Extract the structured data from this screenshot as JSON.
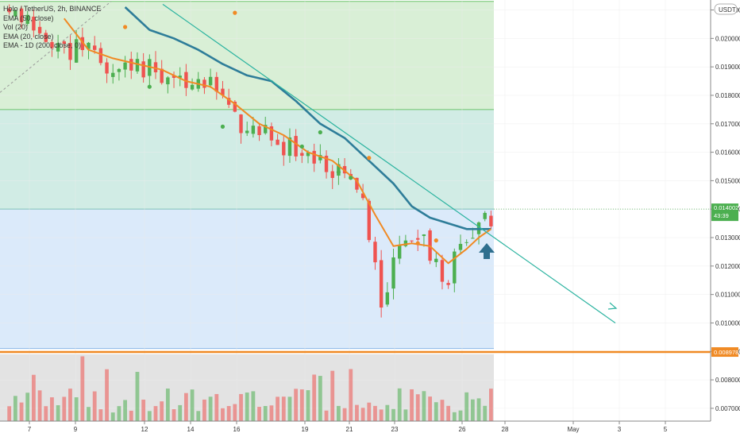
{
  "legend": {
    "symbol_line": "Holo / TetherUS, 2h, BINANCE",
    "ema50": "EMA (50, close)",
    "vol": "Vol (20)",
    "ema20": "EMA (20, close)",
    "ema_1d": "EMA - 1D (200, close, 0)"
  },
  "currency_badge": "USDT",
  "last_price": {
    "value": "0.014002",
    "countdown": "43:39"
  },
  "support_label": "0.008978",
  "colors": {
    "zone_top": "#d9efd6",
    "zone_mid": "#d1ece5",
    "zone_low": "#dbeafa",
    "zone_volume": "#e3e3e3",
    "candle_up": "#4caf50",
    "candle_down": "#ef5350",
    "ema50": "#2e7d99",
    "ema20": "#f08a24",
    "support": "#f08a24",
    "trendline": "#2bb3a0",
    "arrow": "#2e6f8e",
    "grid": "#ececec"
  },
  "icons": [
    "up-arrow-icon"
  ],
  "chart_data": {
    "type": "candlestick",
    "title": "Holo / TetherUS, 2h, BINANCE",
    "xlabel": "",
    "ylabel": "",
    "y_ticks": [
      "0.021000",
      "0.020000",
      "0.019000",
      "0.018000",
      "0.017000",
      "0.016000",
      "0.015000",
      "0.014000",
      "0.013000",
      "0.012000",
      "0.011000",
      "0.010000",
      "0.009000",
      "0.008000",
      "0.007000"
    ],
    "x_ticks": [
      "7",
      "9",
      "12",
      "14",
      "16",
      "19",
      "21",
      "23",
      "26",
      "28",
      "May",
      "3",
      "5"
    ],
    "ylim": [
      0.00655,
      0.02135
    ],
    "grid": true,
    "legend_position": "top-left",
    "zones": [
      {
        "name": "green",
        "from": 0.0175,
        "to": 0.0213
      },
      {
        "name": "teal",
        "from": 0.014,
        "to": 0.0175
      },
      {
        "name": "blue",
        "from": 0.0091,
        "to": 0.014
      },
      {
        "name": "gray",
        "from": 0.00655,
        "to": 0.0089
      }
    ],
    "support_level": 0.008978,
    "last_price": 0.014002,
    "trendline": [
      {
        "x": "11",
        "y": 0.0212
      },
      {
        "x": "May 2",
        "y": 0.01
      }
    ],
    "anchors": [
      {
        "x": 0,
        "y": 0.0212
      },
      {
        "x": 5,
        "y": 0.0202
      },
      {
        "x": 10,
        "y": 0.0195
      },
      {
        "x": 13,
        "y": 0.0199
      },
      {
        "x": 18,
        "y": 0.0188
      },
      {
        "x": 22,
        "y": 0.0192
      },
      {
        "x": 26,
        "y": 0.0186
      },
      {
        "x": 30,
        "y": 0.0187
      },
      {
        "x": 34,
        "y": 0.0182
      },
      {
        "x": 39,
        "y": 0.0171
      },
      {
        "x": 43,
        "y": 0.0168
      },
      {
        "x": 47,
        "y": 0.0161
      },
      {
        "x": 52,
        "y": 0.0158
      },
      {
        "x": 56,
        "y": 0.0152
      },
      {
        "x": 59,
        "y": 0.014
      },
      {
        "x": 62,
        "y": 0.0108
      },
      {
        "x": 65,
        "y": 0.0128
      },
      {
        "x": 68,
        "y": 0.0129
      },
      {
        "x": 71,
        "y": 0.0122
      },
      {
        "x": 73,
        "y": 0.011
      },
      {
        "x": 74,
        "y": 0.0125
      },
      {
        "x": 77,
        "y": 0.0131
      },
      {
        "x": 80,
        "y": 0.0137
      }
    ],
    "ema20": [
      {
        "x": 10,
        "y": 0.0207
      },
      {
        "x": 14,
        "y": 0.0196
      },
      {
        "x": 18,
        "y": 0.0193
      },
      {
        "x": 22,
        "y": 0.0191
      },
      {
        "x": 26,
        "y": 0.0189
      },
      {
        "x": 30,
        "y": 0.0185
      },
      {
        "x": 34,
        "y": 0.0183
      },
      {
        "x": 38,
        "y": 0.0177
      },
      {
        "x": 42,
        "y": 0.017
      },
      {
        "x": 46,
        "y": 0.0166
      },
      {
        "x": 50,
        "y": 0.016
      },
      {
        "x": 54,
        "y": 0.0157
      },
      {
        "x": 58,
        "y": 0.015
      },
      {
        "x": 61,
        "y": 0.0138
      },
      {
        "x": 64,
        "y": 0.0127
      },
      {
        "x": 67,
        "y": 0.0128
      },
      {
        "x": 70,
        "y": 0.0127
      },
      {
        "x": 73,
        "y": 0.0121
      },
      {
        "x": 76,
        "y": 0.0126
      },
      {
        "x": 78,
        "y": 0.013
      },
      {
        "x": 80,
        "y": 0.0133
      }
    ],
    "ema50": [
      {
        "x": 20,
        "y": 0.0211
      },
      {
        "x": 24,
        "y": 0.0203
      },
      {
        "x": 28,
        "y": 0.02
      },
      {
        "x": 32,
        "y": 0.0196
      },
      {
        "x": 36,
        "y": 0.0191
      },
      {
        "x": 40,
        "y": 0.0187
      },
      {
        "x": 44,
        "y": 0.0185
      },
      {
        "x": 48,
        "y": 0.0178
      },
      {
        "x": 52,
        "y": 0.017
      },
      {
        "x": 56,
        "y": 0.0165
      },
      {
        "x": 60,
        "y": 0.0157
      },
      {
        "x": 64,
        "y": 0.0149
      },
      {
        "x": 67,
        "y": 0.0141
      },
      {
        "x": 70,
        "y": 0.0137
      },
      {
        "x": 73,
        "y": 0.0135
      },
      {
        "x": 76,
        "y": 0.0133
      },
      {
        "x": 80,
        "y": 0.0133
      }
    ],
    "markers": [
      {
        "x": 20,
        "y": 0.0204,
        "color": "ema20"
      },
      {
        "x": 38,
        "y": 0.0209,
        "color": "ema20"
      },
      {
        "x": 24,
        "y": 0.0183,
        "color": "up"
      },
      {
        "x": 36,
        "y": 0.0169,
        "color": "up"
      },
      {
        "x": 49,
        "y": 0.0162,
        "color": "up"
      },
      {
        "x": 52,
        "y": 0.0167,
        "color": "up"
      },
      {
        "x": 55,
        "y": 0.0153,
        "color": "up"
      },
      {
        "x": 57,
        "y": 0.0151,
        "color": "up"
      },
      {
        "x": 60,
        "y": 0.0158,
        "color": "ema20"
      },
      {
        "x": 68,
        "y": 0.0128,
        "color": "ema20"
      },
      {
        "x": 71,
        "y": 0.0129,
        "color": "ema20"
      }
    ]
  }
}
